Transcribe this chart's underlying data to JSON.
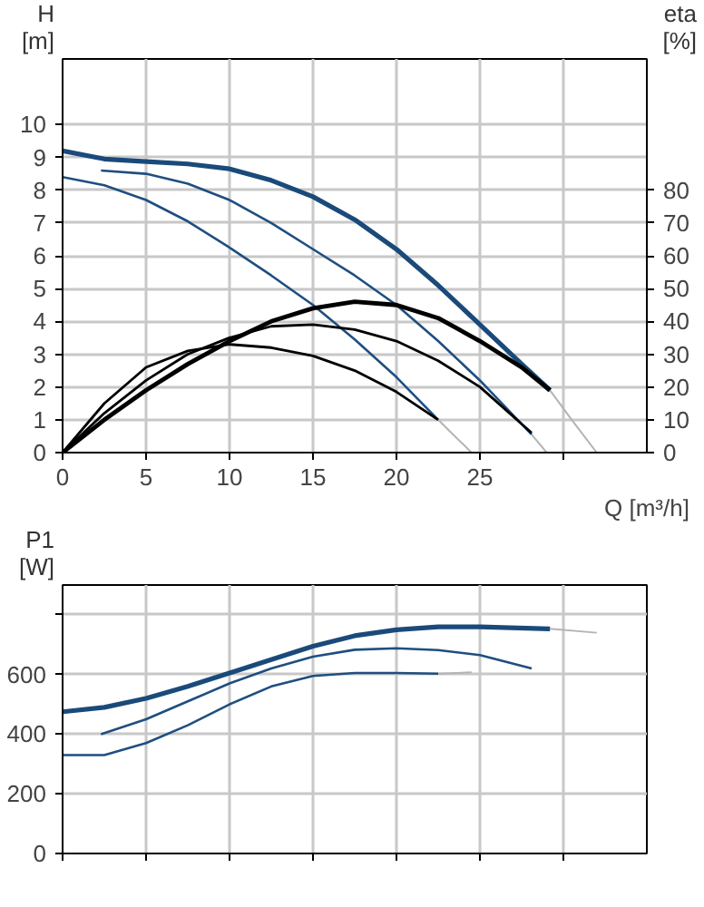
{
  "chart_data": [
    {
      "type": "line",
      "xlabel": "Q [m³/h]",
      "ylabel": "H\n[m]",
      "y2label": "eta\n[%]",
      "xlim": [
        0,
        35
      ],
      "ylim": [
        0,
        12
      ],
      "y2lim": [
        0,
        120
      ],
      "xticks": [
        0,
        5,
        10,
        15,
        20,
        25,
        {
          "value": 30,
          "label": null
        }
      ],
      "yticks": [
        0,
        1,
        2,
        3,
        4,
        5,
        6,
        7,
        8,
        9,
        10
      ],
      "y2ticks": [
        0,
        10,
        20,
        30,
        40,
        50,
        60,
        70,
        80
      ],
      "grid": true,
      "series": [
        {
          "color": "#1a4a7a",
          "x": [
            0,
            2.5,
            5,
            7.5,
            10,
            12.5,
            15,
            17.5,
            20,
            22.5,
            25,
            27.5,
            29.2
          ],
          "values": [
            9.2,
            8.95,
            8.87,
            8.8,
            8.65,
            8.3,
            7.8,
            7.1,
            6.2,
            5.1,
            3.9,
            2.7,
            1.9
          ]
        },
        {
          "color": "#1f4e80",
          "x": [
            2.3,
            5,
            7.5,
            10,
            12.5,
            15,
            17.5,
            20,
            22.5,
            25,
            28.1
          ],
          "values": [
            8.6,
            8.5,
            8.2,
            7.7,
            7.0,
            6.2,
            5.4,
            4.5,
            3.4,
            2.2,
            0.55
          ]
        },
        {
          "color": "#1f4e80",
          "x": [
            0,
            2.5,
            5,
            7.5,
            10,
            12.5,
            15,
            17.5,
            20,
            22.5
          ],
          "values": [
            8.4,
            8.15,
            7.7,
            7.05,
            6.25,
            5.4,
            4.5,
            3.45,
            2.3,
            1.0
          ]
        },
        {
          "color": "#b4b4b4",
          "x": [
            29.2,
            30.5,
            32
          ],
          "values": [
            1.9,
            1.0,
            0
          ]
        },
        {
          "color": "#b4b4b4",
          "x": [
            28.1,
            29
          ],
          "values": [
            0.55,
            0
          ]
        },
        {
          "color": "#b4b4b4",
          "x": [
            22.5,
            23.5,
            24.5
          ],
          "values": [
            1.0,
            0.5,
            0
          ]
        },
        {
          "color": "#000000",
          "axis": "y2",
          "x": [
            0,
            2.5,
            5,
            7.5,
            10,
            12.5,
            15,
            17.5,
            20,
            22.5,
            25,
            27.5,
            29.2
          ],
          "values": [
            0,
            10,
            19,
            27,
            34,
            40,
            44,
            46,
            45,
            41,
            34,
            26,
            19
          ]
        },
        {
          "color": "#000000",
          "axis": "y2",
          "x": [
            0,
            2.5,
            5,
            7.5,
            10,
            12.5,
            15,
            17.5,
            20,
            22.5,
            25,
            28.1
          ],
          "values": [
            0,
            12,
            22,
            30,
            35,
            38.5,
            39,
            37.5,
            34,
            28,
            20,
            6
          ]
        },
        {
          "color": "#000000",
          "axis": "y2",
          "x": [
            0,
            2.5,
            5,
            7.5,
            10,
            12.5,
            15,
            17.5,
            20,
            22.5
          ],
          "values": [
            0,
            15,
            26,
            31,
            33,
            32,
            29.5,
            25,
            18.5,
            10
          ]
        }
      ]
    },
    {
      "type": "line",
      "ylabel": "P1\n[W]",
      "xlim": [
        0,
        35
      ],
      "ylim": [
        0,
        900
      ],
      "xticks": [
        0,
        5,
        10,
        15,
        20,
        25,
        30
      ],
      "yticks": [
        0,
        200,
        400,
        600,
        {
          "value": 800,
          "label": null
        }
      ],
      "grid": true,
      "tick_labels": "y",
      "series": [
        {
          "color": "#1a4a7a",
          "x": [
            0,
            2.5,
            5,
            7.5,
            10,
            12.5,
            15,
            17.5,
            20,
            22.5,
            25,
            29.2
          ],
          "values": [
            475,
            490,
            520,
            560,
            605,
            650,
            695,
            730,
            750,
            760,
            760,
            753
          ]
        },
        {
          "color": "#1f4e80",
          "x": [
            2.3,
            5,
            7.5,
            10,
            12.5,
            15,
            17.5,
            20,
            22.5,
            25,
            28.1
          ],
          "values": [
            400,
            450,
            510,
            570,
            620,
            660,
            683,
            688,
            682,
            665,
            620
          ]
        },
        {
          "color": "#1f4e80",
          "x": [
            0,
            2.5,
            5,
            7.5,
            10,
            12.5,
            15,
            17.5,
            20,
            22.5
          ],
          "values": [
            330,
            330,
            370,
            430,
            500,
            560,
            595,
            605,
            605,
            603
          ]
        },
        {
          "color": "#b4b4b4",
          "x": [
            29.2,
            32
          ],
          "values": [
            753,
            740
          ]
        },
        {
          "color": "#b4b4b4",
          "x": [
            22.5,
            24.5
          ],
          "values": [
            603,
            607
          ]
        }
      ]
    }
  ]
}
